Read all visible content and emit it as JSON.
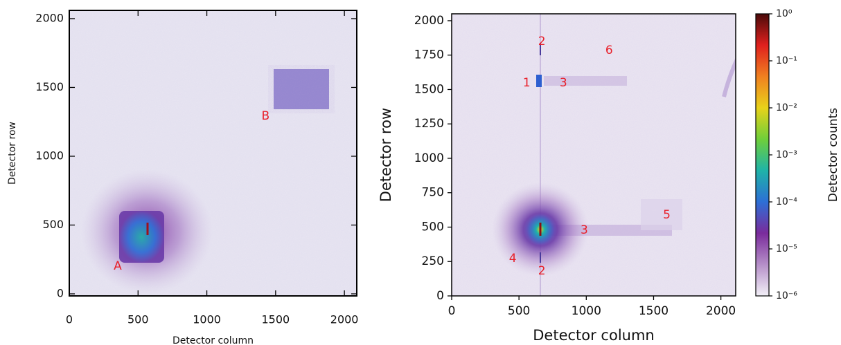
{
  "chart_data": [
    {
      "type": "image",
      "xlabel": "Detector column",
      "ylabel": "Detector row",
      "xlim": [
        0,
        2090
      ],
      "ylim": [
        -15,
        2060
      ],
      "xticks": [
        0,
        500,
        1000,
        1500,
        2000
      ],
      "yticks": [
        0,
        500,
        1000,
        1500,
        2000
      ],
      "annotation_color": "#e8202a",
      "annotations": [
        {
          "text": "A",
          "x": 352,
          "y": 201
        },
        {
          "text": "B",
          "x": 1427,
          "y": 1291
        }
      ]
    },
    {
      "type": "image",
      "xlabel": "Detector column",
      "ylabel": "Detector row",
      "xlim": [
        0,
        2110
      ],
      "ylim": [
        0,
        2050
      ],
      "xticks": [
        0,
        500,
        1000,
        1500,
        2000
      ],
      "yticks": [
        0,
        250,
        500,
        750,
        1000,
        1250,
        1500,
        1750,
        2000
      ],
      "annotation_color": "#e8202a",
      "annotations": [
        {
          "text": "1",
          "x": 557,
          "y": 1548
        },
        {
          "text": "2",
          "x": 670,
          "y": 1850
        },
        {
          "text": "3",
          "x": 830,
          "y": 1548
        },
        {
          "text": "6",
          "x": 1170,
          "y": 1784
        },
        {
          "text": "5",
          "x": 1598,
          "y": 588
        },
        {
          "text": "3",
          "x": 985,
          "y": 477
        },
        {
          "text": "4",
          "x": 454,
          "y": 271
        },
        {
          "text": "2",
          "x": 670,
          "y": 181
        }
      ],
      "colorbar": {
        "label": "Detector counts",
        "scale": "log",
        "lim": [
          1e-06,
          1
        ],
        "ticks": [
          {
            "value": 1,
            "label": "10⁰"
          },
          {
            "value": 0.1,
            "label": "10⁻¹"
          },
          {
            "value": 0.01,
            "label": "10⁻²"
          },
          {
            "value": 0.001,
            "label": "10⁻³"
          },
          {
            "value": 0.0001,
            "label": "10⁻⁴"
          },
          {
            "value": 1e-05,
            "label": "10⁻⁵"
          },
          {
            "value": 1e-06,
            "label": "10⁻⁶"
          }
        ],
        "colormap": [
          "#f2f0f7",
          "#b58fc8",
          "#7a2b9c",
          "#2d6fd6",
          "#1fb3a8",
          "#6fcf3a",
          "#e8d21a",
          "#f08020",
          "#e0201e",
          "#4a0a0a"
        ]
      }
    }
  ]
}
